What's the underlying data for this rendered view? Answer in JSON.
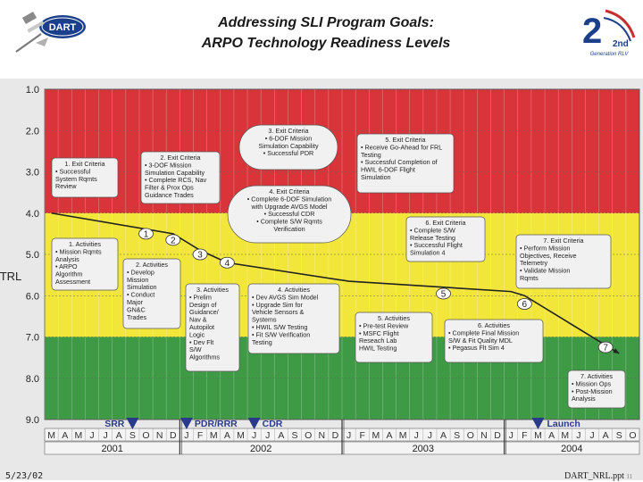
{
  "title": {
    "line1": "Addressing SLI Program Goals:",
    "line2": "ARPO Technology Readiness Levels"
  },
  "logos": {
    "left_text": "DART",
    "right_text": "2nd",
    "right_sub": "Generation RLV"
  },
  "axis": {
    "label": "TRL",
    "ticks": [
      "1.0",
      "2.0",
      "3.0",
      "4.0",
      "5.0",
      "6.0",
      "7.0",
      "8.0",
      "9.0"
    ]
  },
  "colors": {
    "red_zone": "#d9343a",
    "yellow_zone": "#f2e63a",
    "green_zone": "#3f9a45",
    "box_fill": "#f1f1f1",
    "milestone": "#2a3a8a",
    "trl_line": "#222222"
  },
  "chart_data": {
    "type": "line",
    "xlabel": "",
    "ylabel": "TRL",
    "ylim": [
      1.0,
      9.0
    ],
    "inverted_y": true,
    "x_start": "2001-03",
    "x_end": "2004-09",
    "points": [
      {
        "x": "2001-03",
        "y": 4.0
      },
      {
        "x": "2001-12",
        "y": 4.5
      },
      {
        "x": "2002-02",
        "y": 4.9
      },
      {
        "x": "2002-04",
        "y": 5.2
      },
      {
        "x": "2003-01",
        "y": 5.65
      },
      {
        "x": "2004-01",
        "y": 5.9
      },
      {
        "x": "2004-02",
        "y": 6.0
      },
      {
        "x": "2004-09",
        "y": 7.4
      }
    ],
    "markers": [
      {
        "label": "1",
        "x": "2001-10",
        "y": 4.5
      },
      {
        "label": "2",
        "x": "2001-12",
        "y": 4.65
      },
      {
        "label": "3",
        "x": "2002-02",
        "y": 5.0
      },
      {
        "label": "4",
        "x": "2002-04",
        "y": 5.2
      },
      {
        "label": "5",
        "x": "2003-08",
        "y": 5.95
      },
      {
        "label": "6",
        "x": "2004-02",
        "y": 6.2
      },
      {
        "label": "7",
        "x": "2004-08",
        "y": 7.25
      }
    ],
    "milestones": [
      {
        "label": "SRR",
        "x": "2001-09"
      },
      {
        "label": "PDR/RRR",
        "x": "2002-01"
      },
      {
        "label": "CDR",
        "x": "2002-06"
      },
      {
        "label": "Launch",
        "x": "2004-03"
      }
    ],
    "months": [
      "M",
      "A",
      "M",
      "J",
      "J",
      "A",
      "S",
      "O",
      "N",
      "D",
      "J",
      "F",
      "M",
      "A",
      "M",
      "J",
      "J",
      "A",
      "S",
      "O",
      "N",
      "D",
      "J",
      "F",
      "M",
      "A",
      "M",
      "J",
      "J",
      "A",
      "S",
      "O",
      "N",
      "D",
      "J",
      "F",
      "M",
      "A",
      "M",
      "J",
      "J",
      "A",
      "S",
      "O"
    ],
    "years": [
      "2001",
      "2002",
      "2003",
      "2004"
    ]
  },
  "exit_boxes": [
    {
      "title": "1. Exit Criteria",
      "lines": [
        "• Successful",
        "System Rqmts",
        "Review"
      ]
    },
    {
      "title": "2. Exit Criteria",
      "lines": [
        "• 3-DOF Mission",
        "Simulation Capability",
        "• Complete RCS, Nav",
        "Filter & Prox Ops",
        "Guidance Trades"
      ]
    },
    {
      "title": "3. Exit Criteria",
      "lines": [
        "• 6-DOF Mission",
        "Simulation Capability",
        "• Successful PDR"
      ]
    },
    {
      "title": "4. Exit Criteria",
      "lines": [
        "• Complete 6-DOF Simulation",
        "with Upgrade AVGS Model",
        "• Successful CDR",
        "• Complete S/W Rqmts",
        "Verification"
      ]
    },
    {
      "title": "5. Exit Criteria",
      "lines": [
        "• Receive Go-Ahead for FRL",
        "Testing",
        "• Successful Completion of",
        "HWIL 6-DOF Flight",
        "Simulation"
      ]
    },
    {
      "title": "6. Exit Criteria",
      "lines": [
        "• Complete S/W",
        "Release Testing",
        "• Successful Flight",
        "Simulation 4"
      ]
    },
    {
      "title": "7. Exit Criteria",
      "lines": [
        "• Perform Mission",
        "Objectives, Receive",
        "Telemetry",
        "• Validate Mission",
        "Rqmts"
      ]
    }
  ],
  "activity_boxes": [
    {
      "title": "1. Activities",
      "lines": [
        "• Mission Rqmts",
        "Analysis",
        "• ARPO",
        "Algorithm",
        "Assessment"
      ]
    },
    {
      "title": "2. Activities",
      "lines": [
        "• Develop",
        "Mission",
        "Simulation",
        "• Conduct",
        "Major",
        "GN&C",
        "Trades"
      ]
    },
    {
      "title": "3. Activities",
      "lines": [
        "• Prelim",
        "Design of",
        "Guidance/",
        "Nav &",
        "Autopilot",
        "Logic",
        "• Dev Flt",
        "S/W",
        "Algorithms"
      ]
    },
    {
      "title": "4. Activities",
      "lines": [
        "• Dev AVGS Sim Model",
        "• Upgrade Sim for",
        "Vehicle Sensors &",
        "Systems",
        "• HWIL S/W Testing",
        "• Fit S/W Verification",
        "Testing"
      ]
    },
    {
      "title": "5. Activities",
      "lines": [
        "• Pre-test Review",
        "• MSFC Flight",
        "Reseach Lab",
        "HWIL Testing"
      ]
    },
    {
      "title": "6. Activities",
      "lines": [
        "• Complete Final Mission",
        "S/W & Fit Quality MDL",
        "• Pegasus Flt Sim 4"
      ]
    },
    {
      "title": "7. Activities",
      "lines": [
        "• Mission Ops",
        "• Post-Mission",
        "Analysis"
      ]
    }
  ],
  "footer": {
    "date": "5/23/02",
    "doc_id": "DART_NRL.ppt",
    "page": "11"
  }
}
